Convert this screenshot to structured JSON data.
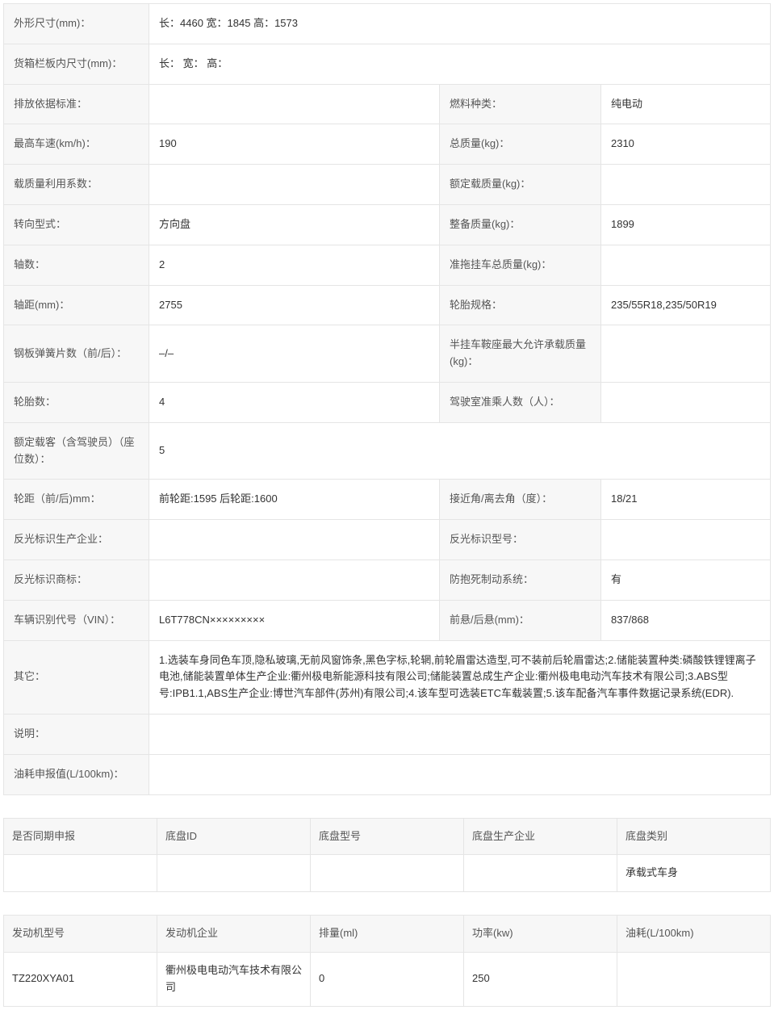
{
  "main": {
    "rows": [
      {
        "type": "full",
        "label": "外形尺寸(mm)：",
        "value": "长：4460 宽：1845 高：1573"
      },
      {
        "type": "full",
        "label": "货箱栏板内尺寸(mm)：",
        "value": "长： 宽： 高："
      },
      {
        "type": "pair",
        "label1": "排放依据标准：",
        "value1": "",
        "label2": "燃料种类：",
        "value2": "纯电动"
      },
      {
        "type": "pair",
        "label1": "最高车速(km/h)：",
        "value1": "190",
        "label2": "总质量(kg)：",
        "value2": "2310"
      },
      {
        "type": "pair",
        "label1": "载质量利用系数：",
        "value1": "",
        "label2": "额定载质量(kg)：",
        "value2": ""
      },
      {
        "type": "pair",
        "label1": "转向型式：",
        "value1": "方向盘",
        "label2": "整备质量(kg)：",
        "value2": "1899"
      },
      {
        "type": "pair",
        "label1": "轴数：",
        "value1": "2",
        "label2": "准拖挂车总质量(kg)：",
        "value2": ""
      },
      {
        "type": "pair",
        "label1": "轴距(mm)：",
        "value1": "2755",
        "label2": "轮胎规格：",
        "value2": "235/55R18,235/50R19"
      },
      {
        "type": "pair",
        "label1": "钢板弹簧片数（前/后）：",
        "value1": "–/–",
        "label2": "半挂车鞍座最大允许承载质量(kg)：",
        "value2": ""
      },
      {
        "type": "pair",
        "label1": "轮胎数：",
        "value1": "4",
        "label2": "驾驶室准乘人数（人）：",
        "value2": ""
      },
      {
        "type": "full",
        "label": "额定载客（含驾驶员）（座位数）：",
        "value": "5"
      },
      {
        "type": "pair",
        "label1": "轮距（前/后)mm：",
        "value1": "前轮距:1595 后轮距:1600",
        "label2": "接近角/离去角（度）：",
        "value2": "18/21"
      },
      {
        "type": "pair",
        "label1": "反光标识生产企业：",
        "value1": "",
        "label2": "反光标识型号：",
        "value2": ""
      },
      {
        "type": "pair",
        "label1": "反光标识商标：",
        "value1": "",
        "label2": "防抱死制动系统：",
        "value2": "有"
      },
      {
        "type": "pair",
        "label1": "车辆识别代号（VIN）：",
        "value1": "L6T778CN×××××××××",
        "label2": "前悬/后悬(mm)：",
        "value2": "837/868"
      },
      {
        "type": "full",
        "label": "其它：",
        "value": "1.选装车身同色车顶,隐私玻璃,无前风窗饰条,黑色字标,轮辋,前轮眉雷达造型,可不装前后轮眉雷达;2.储能装置种类:磷酸铁锂锂离子电池,储能装置单体生产企业:衢州极电新能源科技有限公司;储能装置总成生产企业:衢州极电电动汽车技术有限公司;3.ABS型号:IPB1.1,ABS生产企业:博世汽车部件(苏州)有限公司;4.该车型可选装ETC车载装置;5.该车配备汽车事件数据记录系统(EDR)."
      },
      {
        "type": "full",
        "label": "说明：",
        "value": ""
      },
      {
        "type": "full",
        "label": "油耗申报值(L/100km)：",
        "value": ""
      }
    ]
  },
  "chassis": {
    "headers": [
      "是否同期申报",
      "底盘ID",
      "底盘型号",
      "底盘生产企业",
      "底盘类别"
    ],
    "row": [
      "",
      "",
      "",
      "",
      "承载式车身"
    ]
  },
  "engine": {
    "headers": [
      "发动机型号",
      "发动机企业",
      "排量(ml)",
      "功率(kw)",
      "油耗(L/100km)"
    ],
    "row": [
      "TZ220XYA01",
      "衢州极电电动汽车技术有限公司",
      "0",
      "250",
      ""
    ]
  }
}
